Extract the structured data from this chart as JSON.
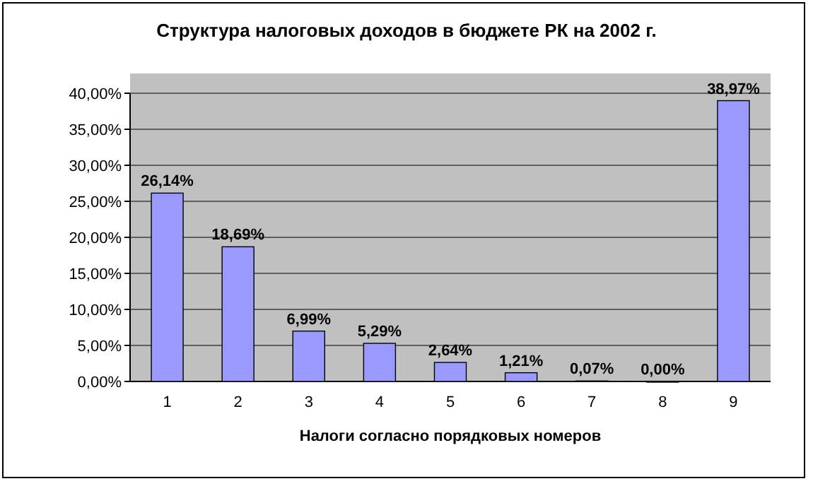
{
  "chart_data": {
    "type": "bar",
    "title": "Структура налоговых доходов в бюджете РК на 2002 г.",
    "xlabel": "Налоги согласно порядковых номеров",
    "categories": [
      "1",
      "2",
      "3",
      "4",
      "5",
      "6",
      "7",
      "8",
      "9"
    ],
    "values": [
      26.14,
      18.69,
      6.99,
      5.29,
      2.64,
      1.21,
      0.07,
      0.0,
      38.97
    ],
    "colors": [
      "#9999ff",
      "#9999ff",
      "#9999ff",
      "#9999ff",
      "#9999ff",
      "#9999ff",
      "#9999ff",
      "#cc0000",
      "#9999ff"
    ],
    "value_labels": [
      "26,14%",
      "18,69%",
      "6,99%",
      "5,29%",
      "2,64%",
      "1,21%",
      "0,07%",
      "0,00%",
      "38,97%"
    ],
    "ylim": [
      0,
      40
    ],
    "yticks": [
      {
        "value": 0,
        "label": "0,00%"
      },
      {
        "value": 5,
        "label": "5,00%"
      },
      {
        "value": 10,
        "label": "10,00%"
      },
      {
        "value": 15,
        "label": "15,00%"
      },
      {
        "value": 20,
        "label": "20,00%"
      },
      {
        "value": 25,
        "label": "25,00%"
      },
      {
        "value": 30,
        "label": "30,00%"
      },
      {
        "value": 35,
        "label": "35,00%"
      },
      {
        "value": 40,
        "label": "40,00%"
      }
    ],
    "grid": "y"
  }
}
